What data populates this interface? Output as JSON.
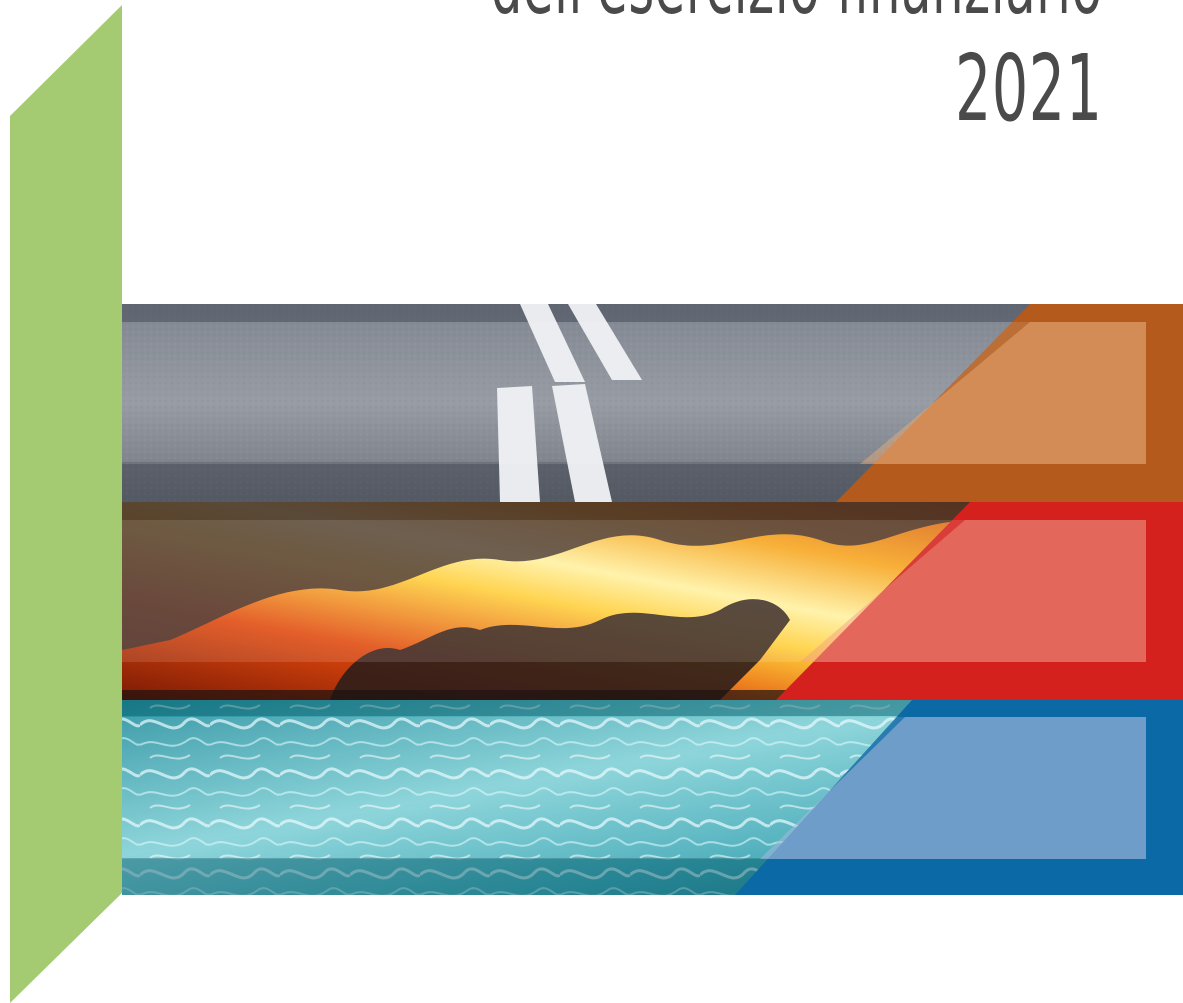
{
  "cover": {
    "title_line": "dell'esercizio finanziario",
    "year": "2021"
  },
  "colors": {
    "green_band": "#a4cb72",
    "title_text": "#4a4a4a",
    "strip_road_accent": "#b35a1c",
    "strip_fire_accent": "#d4211e",
    "strip_water_accent": "#0b6aa6"
  },
  "strips": [
    {
      "name": "road",
      "theme": "asphalt-road-image"
    },
    {
      "name": "fire",
      "theme": "fire-clouds-image"
    },
    {
      "name": "water",
      "theme": "water-surface-image"
    }
  ]
}
